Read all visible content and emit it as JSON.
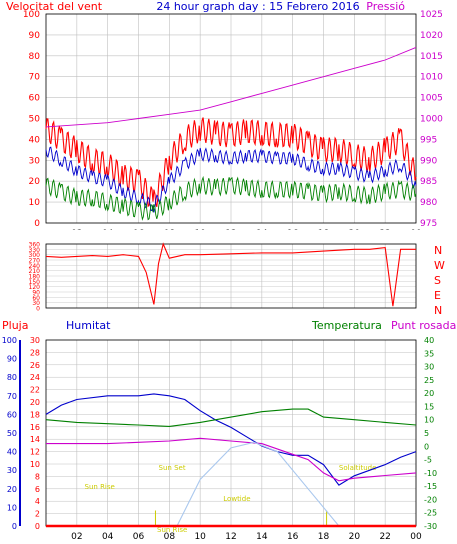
{
  "chart_data": [
    {
      "type": "line",
      "title": "24 hour graph day : 15 Febrero 2016",
      "left_axis_label": "Velocitat del vent",
      "right_axis_label": "Pressió",
      "x_ticks": [
        "02",
        "04",
        "06",
        "08",
        "10",
        "12",
        "14",
        "16",
        "18",
        "20",
        "22",
        "00"
      ],
      "y_left_ticks": [
        "0",
        "10",
        "20",
        "30",
        "40",
        "50",
        "60",
        "70",
        "80",
        "90",
        "100"
      ],
      "y_left_range": [
        0,
        100
      ],
      "y_right_ticks": [
        "975",
        "980",
        "985",
        "990",
        "995",
        "1000",
        "1005",
        "1010",
        "1015",
        "1020",
        "1025"
      ],
      "y_right_range": [
        975,
        1025
      ],
      "grid": true,
      "series": [
        {
          "color": "#ff0000",
          "x": [
            0,
            1,
            2,
            3,
            4,
            5,
            6,
            7,
            8,
            9,
            10,
            11,
            12,
            13,
            14,
            15,
            16,
            17,
            18,
            19,
            20,
            21,
            22,
            23,
            24
          ],
          "y": [
            45,
            40,
            35,
            30,
            28,
            22,
            20,
            10,
            30,
            40,
            45,
            43,
            42,
            44,
            43,
            42,
            42,
            38,
            35,
            35,
            32,
            30,
            35,
            40,
            22
          ]
        },
        {
          "color": "#0000cc",
          "x": [
            0,
            1,
            2,
            3,
            4,
            5,
            6,
            7,
            8,
            9,
            10,
            11,
            12,
            13,
            14,
            15,
            16,
            17,
            18,
            19,
            20,
            21,
            22,
            23,
            24
          ],
          "y": [
            35,
            30,
            25,
            22,
            20,
            15,
            12,
            8,
            20,
            28,
            33,
            32,
            31,
            32,
            32,
            31,
            31,
            28,
            26,
            26,
            24,
            22,
            25,
            28,
            18
          ]
        },
        {
          "color": "#008000",
          "x": [
            0,
            1,
            2,
            3,
            4,
            5,
            6,
            7,
            8,
            9,
            10,
            11,
            12,
            13,
            14,
            15,
            16,
            17,
            18,
            19,
            20,
            21,
            22,
            23,
            24
          ],
          "y": [
            18,
            15,
            12,
            12,
            10,
            8,
            6,
            5,
            10,
            15,
            18,
            17,
            18,
            17,
            16,
            16,
            16,
            15,
            14,
            15,
            14,
            13,
            15,
            16,
            14
          ]
        },
        {
          "color": "#cc00cc",
          "axis": "right",
          "x": [
            0,
            2,
            4,
            6,
            8,
            10,
            12,
            14,
            16,
            18,
            20,
            22,
            24
          ],
          "y": [
            998,
            998.5,
            999,
            1000,
            1001,
            1002,
            1004,
            1006,
            1008,
            1010,
            1012,
            1014,
            1017
          ]
        }
      ]
    },
    {
      "type": "line",
      "x_ticks": [
        "02",
        "04",
        "06",
        "08",
        "10",
        "12",
        "14",
        "16",
        "18",
        "20",
        "22",
        "00"
      ],
      "y_ticks": [
        "0",
        "30",
        "60",
        "90",
        "120",
        "150",
        "180",
        "210",
        "240",
        "270",
        "300",
        "330",
        "360"
      ],
      "y_range": [
        0,
        360
      ],
      "direction_labels": [
        "N",
        "W",
        "S",
        "E",
        "N"
      ],
      "grid": true,
      "series": [
        {
          "color": "#ff0000",
          "x": [
            0,
            1,
            2,
            3,
            4,
            5,
            6,
            6.5,
            7,
            7.3,
            7.6,
            8,
            9,
            10,
            12,
            14,
            16,
            18,
            20,
            21,
            22,
            22.5,
            23,
            24
          ],
          "y": [
            290,
            285,
            290,
            295,
            290,
            300,
            290,
            200,
            20,
            250,
            360,
            280,
            300,
            300,
            305,
            310,
            310,
            320,
            330,
            330,
            340,
            10,
            330,
            330
          ]
        }
      ]
    },
    {
      "type": "line",
      "left_axis_labels": [
        "Pluja",
        "Humitat"
      ],
      "right_axis_labels": [
        "Temperatura",
        "Punt rosada"
      ],
      "x_ticks": [
        "02",
        "04",
        "06",
        "08",
        "10",
        "12",
        "14",
        "16",
        "18",
        "20",
        "22",
        "00"
      ],
      "y_left_ticks": [
        "0",
        "2",
        "4",
        "6",
        "8",
        "10",
        "12",
        "14",
        "16",
        "18",
        "20",
        "22",
        "24",
        "26",
        "28",
        "30"
      ],
      "y_left_range": [
        0,
        30
      ],
      "y_humidity_ticks": [
        "0",
        "10",
        "20",
        "30",
        "40",
        "50",
        "60",
        "70",
        "80",
        "90",
        "100"
      ],
      "y_humidity_range": [
        0,
        100
      ],
      "y_right_ticks": [
        "-30",
        "-25",
        "-20",
        "-15",
        "-10",
        "-5",
        "0",
        "5",
        "10",
        "15",
        "20",
        "25",
        "30",
        "35",
        "40"
      ],
      "y_right_range": [
        -30,
        40
      ],
      "annotations": [
        "Sun Rise",
        "Sun Set",
        "Solaltitude",
        "Lowtide",
        "Sun Rise"
      ],
      "grid": true,
      "series": [
        {
          "color": "#0000cc",
          "axis": "humidity",
          "x": [
            0,
            1,
            2,
            4,
            6,
            7,
            8,
            9,
            10,
            11,
            12,
            13,
            14,
            15,
            16,
            17,
            18,
            19,
            20,
            21,
            22,
            23,
            24
          ],
          "y": [
            60,
            65,
            68,
            70,
            70,
            71,
            70,
            68,
            62,
            57,
            53,
            48,
            43,
            40,
            38,
            38,
            33,
            22,
            27,
            30,
            33,
            37,
            40
          ]
        },
        {
          "color": "#008000",
          "axis": "right",
          "x": [
            0,
            2,
            4,
            6,
            8,
            10,
            12,
            14,
            16,
            17,
            18,
            20,
            22,
            24
          ],
          "y": [
            10,
            9,
            8.5,
            8,
            7.5,
            9,
            11,
            13,
            14,
            14,
            11,
            10,
            9,
            8
          ]
        },
        {
          "color": "#cc00cc",
          "axis": "right",
          "x": [
            0,
            2,
            4,
            6,
            8,
            10,
            12,
            14,
            16,
            17,
            18,
            19,
            20,
            22,
            24
          ],
          "y": [
            1,
            1,
            1,
            1.5,
            2,
            3,
            2,
            1,
            -3,
            -5,
            -10,
            -13,
            -12,
            -11,
            -10
          ]
        },
        {
          "color": "#aac8ee",
          "axis": "humidity",
          "x": [
            8.5,
            10,
            12,
            13.5,
            15,
            17,
            19
          ],
          "y": [
            0,
            25,
            42,
            45,
            40,
            20,
            0
          ]
        },
        {
          "color": "#ff0000",
          "axis": "left",
          "x": [
            0,
            24
          ],
          "y": [
            0,
            0
          ]
        }
      ]
    }
  ],
  "legend": {
    "wind_title_color": "#ff0000",
    "pressure_color": "#cc00cc",
    "humidity_color": "#0000cc",
    "temperature_color": "#008000",
    "dew_color": "#cc00cc",
    "rain_color": "#ff0000",
    "grid_color": "#c0c0c0",
    "annotation_color": "#cccc00"
  }
}
